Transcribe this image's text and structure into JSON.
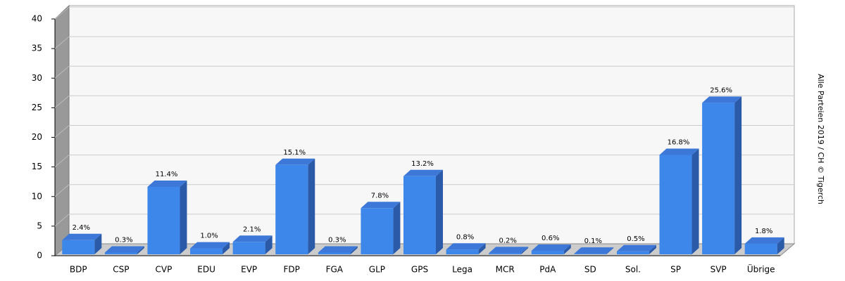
{
  "chart_data": {
    "type": "bar3d",
    "categories": [
      "BDP",
      "CSP",
      "CVP",
      "EDU",
      "EVP",
      "FDP",
      "FGA",
      "GLP",
      "GPS",
      "Lega",
      "MCR",
      "PdA",
      "SD",
      "Sol.",
      "SP",
      "SVP",
      "Übrige"
    ],
    "values": [
      2.4,
      0.3,
      11.4,
      1.0,
      2.1,
      15.1,
      0.3,
      7.8,
      13.2,
      0.8,
      0.2,
      0.6,
      0.1,
      0.5,
      16.8,
      25.6,
      1.8
    ],
    "value_labels": [
      "2.4%",
      "0.3%",
      "11.4%",
      "1.0%",
      "2.1%",
      "15.1%",
      "0.3%",
      "7.8%",
      "13.2%",
      "0.8%",
      "0.2%",
      "0.6%",
      "0.1%",
      "0.5%",
      "16.8%",
      "25.6%",
      "1.8%"
    ],
    "color": "#3d86ea",
    "ylim": [
      0,
      40
    ],
    "yticks": [
      0,
      5,
      10,
      15,
      20,
      25,
      30,
      35,
      40
    ],
    "grid": true,
    "source": "Alle Parteien 2019 / CH © Tigerch"
  }
}
